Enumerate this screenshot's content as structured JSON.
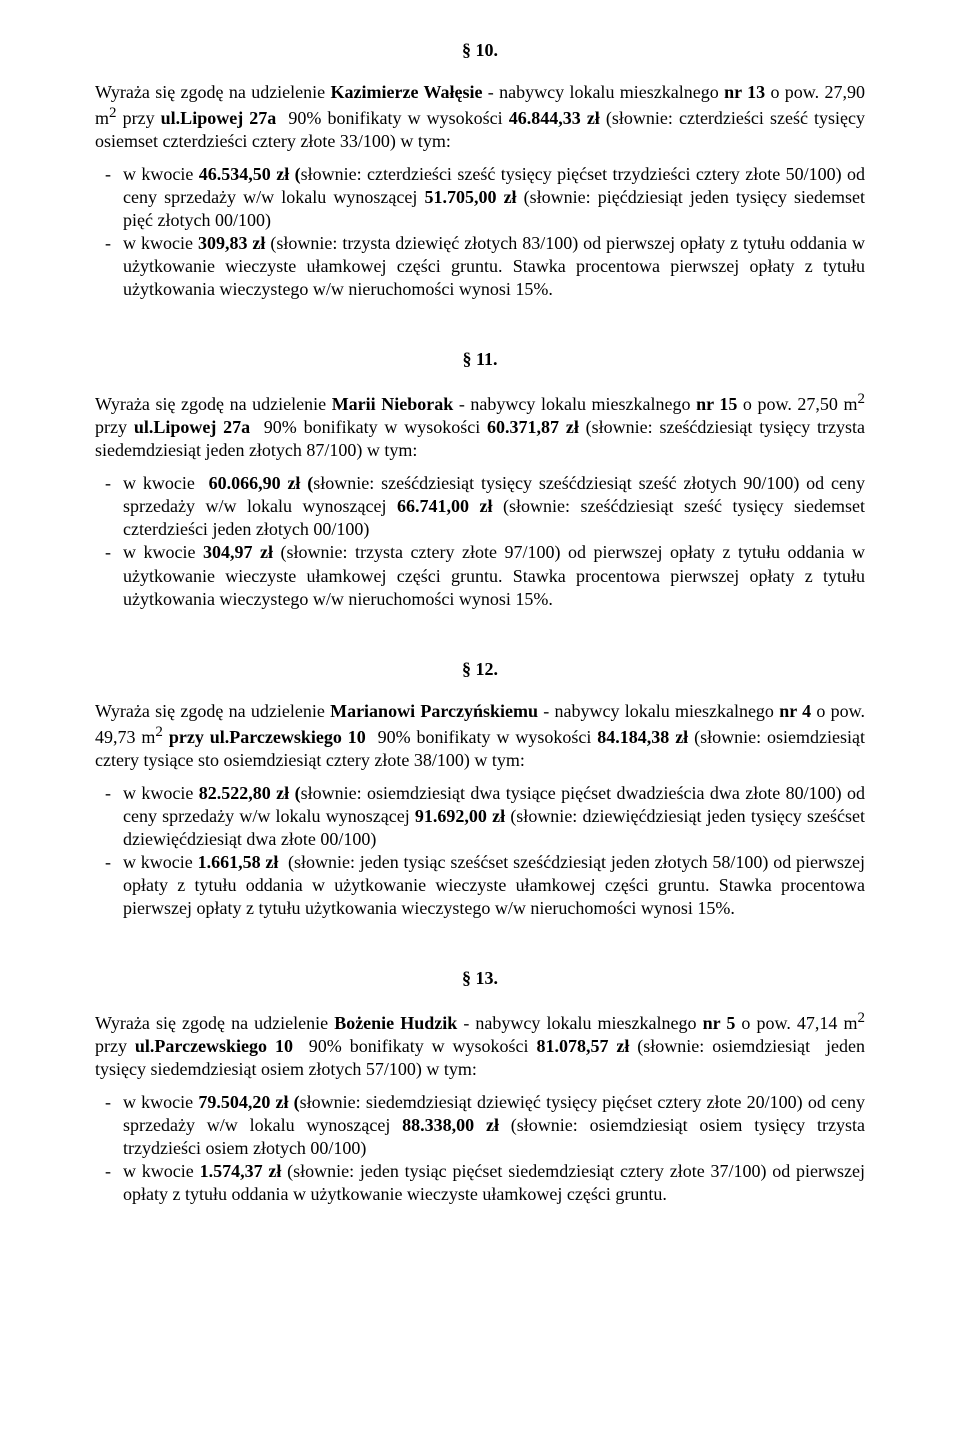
{
  "sections": {
    "s10": {
      "number": "§ 10.",
      "intro": "Wyraża się zgodę na udzielenie <b>Kazimierze Wałęsie</b> - nabywcy lokalu mieszkalnego <b>nr 13</b> o pow. 27,90 m<sup>2</sup> przy <b>ul.Lipowej 27a</b>&nbsp; 90% bonifikaty w wysokości <b>46.844,33 zł</b> (słownie: czterdzieści sześć tysięcy osiemset czterdzieści cztery złote 33/100) w tym:",
      "items": [
        "w kwocie <b>46.534,50 zł (</b>słownie: czterdzieści sześć tysięcy pięćset trzydzieści cztery złote 50/100) od ceny sprzedaży w/w lokalu wynoszącej <b>51.705,00 zł</b> (słownie: pięćdziesiąt jeden tysięcy siedemset pięć złotych 00/100)",
        "w kwocie <b>309,83 zł</b> (słownie: trzysta dziewięć złotych 83/100) od pierwszej opłaty z tytułu oddania w użytkowanie wieczyste ułamkowej części gruntu. Stawka procentowa pierwszej opłaty z tytułu użytkowania wieczystego w/w nieruchomości wynosi 15%."
      ]
    },
    "s11": {
      "number": "§ 11.",
      "intro": "Wyraża się zgodę na udzielenie <b>Marii Nieborak</b> - nabywcy lokalu mieszkalnego <b>nr 15</b> o pow. 27,50 m<sup>2</sup> przy <b>ul.Lipowej 27a</b>&nbsp; 90% bonifikaty w wysokości <b>60.371,87 zł</b> (słownie: sześćdziesiąt tysięcy trzysta siedemdziesiąt jeden złotych 87/100) w tym:",
      "items": [
        "w kwocie&nbsp; <b>60.066,90 zł (</b>słownie: sześćdziesiąt tysięcy sześćdziesiąt sześć złotych 90/100) od ceny sprzedaży w/w lokalu wynoszącej <b>66.741,00 zł</b> (słownie: sześćdziesiąt sześć tysięcy siedemset czterdzieści jeden złotych 00/100)",
        "w kwocie <b>304,97 zł</b> (słownie: trzysta cztery złote 97/100) od pierwszej opłaty z tytułu oddania w użytkowanie wieczyste ułamkowej części gruntu. Stawka procentowa pierwszej opłaty z tytułu użytkowania wieczystego w/w nieruchomości wynosi 15%."
      ]
    },
    "s12": {
      "number": "§ 12.",
      "intro": "Wyraża się zgodę na udzielenie <b>Marianowi Parczyńskiemu</b> - nabywcy lokalu mieszkalnego <b>nr 4</b> o pow. 49,73 m<sup>2</sup> <b>przy ul.Parczewskiego 10</b>&nbsp; 90% bonifikaty w wysokości <b>84.184,38 zł</b> (słownie: osiemdziesiąt cztery tysiące sto osiemdziesiąt cztery złote 38/100) w tym:",
      "items": [
        "w kwocie <b>82.522,80 zł (</b>słownie: osiemdziesiąt dwa tysiące pięćset dwadzieścia dwa złote 80/100) od ceny sprzedaży w/w lokalu wynoszącej <b>91.692,00 zł</b> (słownie: dziewięćdziesiąt jeden tysięcy sześćset dziewięćdziesiąt dwa złote 00/100)",
        "w kwocie <b>1.661,58 zł</b>&nbsp; (słownie: jeden tysiąc sześćset sześćdziesiąt jeden złotych 58/100) od pierwszej opłaty z tytułu oddania w użytkowanie wieczyste ułamkowej części gruntu. Stawka procentowa pierwszej opłaty z tytułu użytkowania wieczystego w/w nieruchomości wynosi 15%."
      ]
    },
    "s13": {
      "number": "§ 13.",
      "intro": "Wyraża się zgodę na udzielenie <b>Bożenie Hudzik</b> - nabywcy lokalu mieszkalnego <b>nr 5</b> o pow. 47,14 m<sup>2</sup> przy <b>ul.Parczewskiego 10</b>&nbsp; 90% bonifikaty w wysokości <b>81.078,57 zł</b> (słownie: osiemdziesiąt&nbsp; jeden tysięcy siedemdziesiąt osiem złotych 57/100) w tym:",
      "items": [
        "w kwocie <b>79.504,20 zł (</b>słownie: siedemdziesiąt dziewięć tysięcy pięćset cztery złote 20/100) od ceny sprzedaży w/w lokalu wynoszącej <b>88.338,00 zł</b> (słownie: osiemdziesiąt osiem tysięcy trzysta trzydzieści osiem złotych 00/100)",
        "w kwocie <b>1.574,37 zł</b> (słownie: jeden tysiąc pięćset siedemdziesiąt cztery złote 37/100) od pierwszej opłaty z tytułu oddania w użytkowanie wieczyste ułamkowej części gruntu."
      ]
    }
  }
}
